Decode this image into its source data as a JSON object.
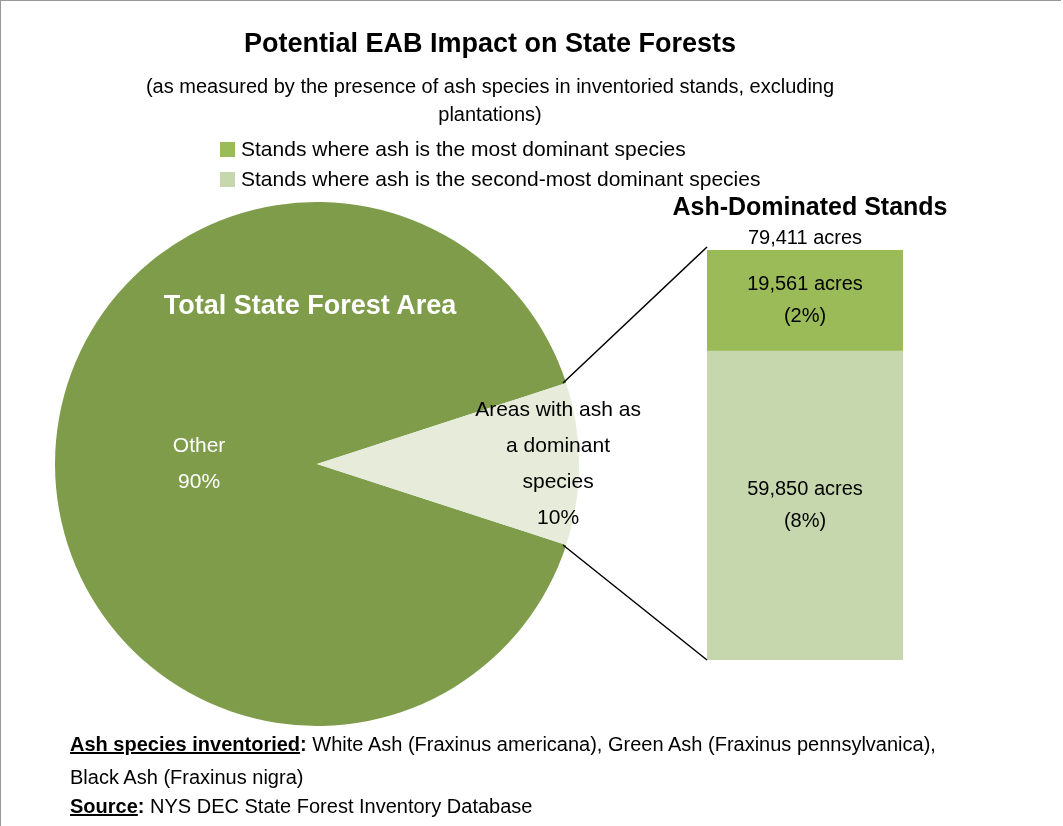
{
  "chart_data": [
    {
      "type": "pie",
      "title": "Potential EAB Impact on State Forests",
      "subtitle": "(as measured by the presence of ash species in inventoried stands, excluding plantations)",
      "categories": [
        "Other",
        "Areas with ash as a dominant species"
      ],
      "values": [
        90,
        10
      ],
      "colors": [
        "#7f9c4a",
        "#e6ecd9"
      ],
      "value_labels": [
        "90%",
        "10%"
      ],
      "annotations": [
        "Total State Forest Area",
        "Ash species inventoried: White Ash (Fraxinus americana), Green Ash (Fraxinus pennsylvanica), Black Ash (Fraxinus nigra)",
        "Source: NYS DEC State Forest Inventory Database"
      ]
    },
    {
      "type": "bar",
      "title": "Ash-Dominated Stands",
      "categories": [
        null
      ],
      "stacked": true,
      "legend": "top",
      "totals": [
        "79,411 acres"
      ],
      "series": [
        {
          "name": "Stands where ash is the second-most dominant species",
          "color": "#c6d6ad",
          "values": [
            59850
          ],
          "value_labels": [
            "59,850 acres (8%)"
          ]
        },
        {
          "name": "Stands where ash is the most dominant species",
          "color": "#9bbb59",
          "values": [
            19561
          ],
          "value_labels": [
            "19,561 acres (2%)"
          ]
        }
      ]
    }
  ]
}
